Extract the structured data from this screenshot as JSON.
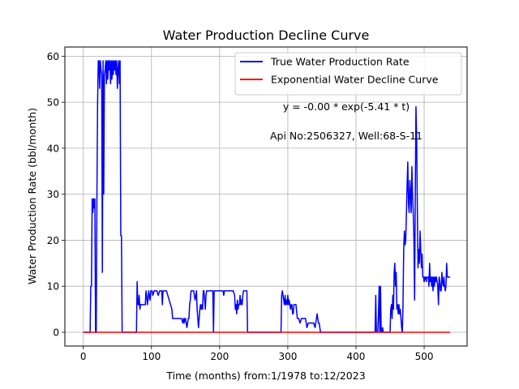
{
  "chart_data": {
    "type": "line",
    "title": "Water Production Decline Curve",
    "xlabel": "Time (months) from:1/1978 to:12/2023",
    "ylabel": "Water Production Rate (bbl/month)",
    "xlim": [
      -27,
      563
    ],
    "ylim": [
      -3,
      62
    ],
    "xticks": [
      0,
      100,
      200,
      300,
      400,
      500
    ],
    "yticks": [
      0,
      10,
      20,
      30,
      40,
      50,
      60
    ],
    "grid": true,
    "legend_position": "top-right",
    "annotations": [
      "y = -0.00 * exp(-5.41 * t)",
      "Api No:2506327, Well:68-S-11"
    ],
    "series": [
      {
        "name": "True Water Production Rate",
        "color": "#0000ff",
        "points": [
          [
            0,
            0
          ],
          [
            10,
            0
          ],
          [
            11,
            10
          ],
          [
            12,
            10
          ],
          [
            13,
            29
          ],
          [
            14,
            26
          ],
          [
            15,
            29
          ],
          [
            16,
            27
          ],
          [
            17,
            29
          ],
          [
            18,
            0
          ],
          [
            19,
            0
          ],
          [
            20,
            29
          ],
          [
            21,
            50
          ],
          [
            22,
            59
          ],
          [
            23,
            59
          ],
          [
            24,
            53
          ],
          [
            25,
            59
          ],
          [
            26,
            57
          ],
          [
            27,
            56
          ],
          [
            28,
            13
          ],
          [
            29,
            59
          ],
          [
            30,
            30
          ],
          [
            31,
            56
          ],
          [
            32,
            57
          ],
          [
            33,
            59
          ],
          [
            34,
            54
          ],
          [
            35,
            59
          ],
          [
            36,
            55
          ],
          [
            37,
            59
          ],
          [
            38,
            57
          ],
          [
            39,
            59
          ],
          [
            40,
            54
          ],
          [
            41,
            59
          ],
          [
            42,
            55
          ],
          [
            43,
            59
          ],
          [
            44,
            56
          ],
          [
            45,
            59
          ],
          [
            46,
            57
          ],
          [
            47,
            59
          ],
          [
            48,
            56
          ],
          [
            49,
            59
          ],
          [
            50,
            53
          ],
          [
            51,
            57
          ],
          [
            52,
            59
          ],
          [
            53,
            54
          ],
          [
            54,
            59
          ],
          [
            55,
            21
          ],
          [
            56,
            21
          ],
          [
            57,
            0
          ],
          [
            58,
            0
          ],
          [
            78,
            0
          ],
          [
            79,
            11
          ],
          [
            80,
            6
          ],
          [
            81,
            6
          ],
          [
            82,
            8
          ],
          [
            83,
            5
          ],
          [
            84,
            6
          ],
          [
            85,
            6
          ],
          [
            86,
            6
          ],
          [
            88,
            6
          ],
          [
            90,
            6
          ],
          [
            91,
            6
          ],
          [
            92,
            9
          ],
          [
            93,
            8
          ],
          [
            94,
            6
          ],
          [
            95,
            7
          ],
          [
            96,
            9
          ],
          [
            98,
            7
          ],
          [
            99,
            9
          ],
          [
            101,
            9
          ],
          [
            102,
            8
          ],
          [
            104,
            9
          ],
          [
            106,
            9
          ],
          [
            108,
            9
          ],
          [
            110,
            8
          ],
          [
            112,
            9
          ],
          [
            114,
            9
          ],
          [
            115,
            9
          ],
          [
            116,
            6
          ],
          [
            117,
            9
          ],
          [
            120,
            9
          ],
          [
            122,
            9
          ],
          [
            124,
            8
          ],
          [
            126,
            7
          ],
          [
            128,
            6
          ],
          [
            130,
            5
          ],
          [
            131,
            3
          ],
          [
            133,
            3
          ],
          [
            135,
            3
          ],
          [
            138,
            3
          ],
          [
            140,
            3
          ],
          [
            142,
            3
          ],
          [
            144,
            3
          ],
          [
            146,
            2
          ],
          [
            147,
            3
          ],
          [
            148,
            2
          ],
          [
            149,
            3
          ],
          [
            150,
            3
          ],
          [
            151,
            2
          ],
          [
            152,
            1
          ],
          [
            153,
            2
          ],
          [
            154,
            3
          ],
          [
            155,
            3
          ],
          [
            156,
            6
          ],
          [
            157,
            7
          ],
          [
            158,
            9
          ],
          [
            160,
            9
          ],
          [
            162,
            9
          ],
          [
            164,
            7
          ],
          [
            165,
            8
          ],
          [
            166,
            9
          ],
          [
            167,
            5
          ],
          [
            168,
            3
          ],
          [
            169,
            1
          ],
          [
            170,
            3
          ],
          [
            171,
            5
          ],
          [
            172,
            6
          ],
          [
            173,
            5
          ],
          [
            174,
            6
          ],
          [
            175,
            5
          ],
          [
            176,
            9
          ],
          [
            177,
            9
          ],
          [
            178,
            7
          ],
          [
            179,
            5
          ],
          [
            180,
            8
          ],
          [
            181,
            9
          ],
          [
            182,
            9
          ],
          [
            184,
            9
          ],
          [
            186,
            9
          ],
          [
            188,
            9
          ],
          [
            190,
            9
          ],
          [
            191,
            0
          ],
          [
            192,
            9
          ],
          [
            194,
            9
          ],
          [
            196,
            9
          ],
          [
            198,
            9
          ],
          [
            200,
            9
          ],
          [
            202,
            9
          ],
          [
            204,
            9
          ],
          [
            205,
            9
          ],
          [
            206,
            8
          ],
          [
            207,
            9
          ],
          [
            208,
            9
          ],
          [
            210,
            9
          ],
          [
            212,
            9
          ],
          [
            214,
            9
          ],
          [
            216,
            9
          ],
          [
            218,
            9
          ],
          [
            220,
            9
          ],
          [
            222,
            8
          ],
          [
            223,
            5
          ],
          [
            224,
            6
          ],
          [
            225,
            4
          ],
          [
            226,
            7
          ],
          [
            227,
            5
          ],
          [
            228,
            6
          ],
          [
            229,
            6
          ],
          [
            230,
            8
          ],
          [
            231,
            6
          ],
          [
            232,
            7
          ],
          [
            233,
            6
          ],
          [
            234,
            8
          ],
          [
            235,
            9
          ],
          [
            236,
            9
          ],
          [
            237,
            9
          ],
          [
            238,
            9
          ],
          [
            239,
            9
          ],
          [
            240,
            9
          ],
          [
            241,
            0
          ],
          [
            242,
            0
          ],
          [
            290,
            0
          ],
          [
            291,
            8
          ],
          [
            292,
            9
          ],
          [
            293,
            8
          ],
          [
            294,
            7
          ],
          [
            295,
            6
          ],
          [
            296,
            8
          ],
          [
            297,
            6
          ],
          [
            298,
            7
          ],
          [
            299,
            6
          ],
          [
            300,
            8
          ],
          [
            301,
            6
          ],
          [
            302,
            7
          ],
          [
            303,
            6
          ],
          [
            304,
            5
          ],
          [
            305,
            6
          ],
          [
            306,
            6
          ],
          [
            307,
            4
          ],
          [
            308,
            4
          ],
          [
            309,
            6
          ],
          [
            310,
            6
          ],
          [
            312,
            6
          ],
          [
            314,
            3
          ],
          [
            316,
            3
          ],
          [
            318,
            2
          ],
          [
            320,
            3
          ],
          [
            322,
            3
          ],
          [
            324,
            3
          ],
          [
            326,
            3
          ],
          [
            328,
            1
          ],
          [
            330,
            2
          ],
          [
            332,
            2
          ],
          [
            334,
            2
          ],
          [
            336,
            2
          ],
          [
            338,
            2
          ],
          [
            340,
            1
          ],
          [
            342,
            3
          ],
          [
            343,
            4
          ],
          [
            344,
            3
          ],
          [
            345,
            2
          ],
          [
            346,
            2
          ],
          [
            347,
            1
          ],
          [
            348,
            0
          ],
          [
            350,
            0
          ],
          [
            428,
            0
          ],
          [
            429,
            8
          ],
          [
            430,
            0
          ],
          [
            431,
            0
          ],
          [
            432,
            0
          ],
          [
            433,
            4
          ],
          [
            434,
            10
          ],
          [
            435,
            0
          ],
          [
            436,
            10
          ],
          [
            437,
            0
          ],
          [
            438,
            0
          ],
          [
            439,
            1
          ],
          [
            440,
            0
          ],
          [
            450,
            0
          ],
          [
            451,
            5
          ],
          [
            452,
            6
          ],
          [
            453,
            3
          ],
          [
            454,
            8
          ],
          [
            455,
            5
          ],
          [
            456,
            13
          ],
          [
            457,
            15
          ],
          [
            458,
            10
          ],
          [
            459,
            13
          ],
          [
            460,
            5
          ],
          [
            461,
            6
          ],
          [
            462,
            4
          ],
          [
            463,
            6
          ],
          [
            464,
            4
          ],
          [
            465,
            5
          ],
          [
            466,
            3
          ],
          [
            467,
            1
          ],
          [
            468,
            0
          ],
          [
            469,
            6
          ],
          [
            470,
            18
          ],
          [
            471,
            22
          ],
          [
            472,
            19
          ],
          [
            473,
            20
          ],
          [
            474,
            26
          ],
          [
            475,
            32
          ],
          [
            476,
            37
          ],
          [
            477,
            28
          ],
          [
            478,
            26
          ],
          [
            479,
            33
          ],
          [
            480,
            30
          ],
          [
            481,
            26
          ],
          [
            482,
            36
          ],
          [
            483,
            30
          ],
          [
            484,
            26
          ],
          [
            485,
            20
          ],
          [
            486,
            7
          ],
          [
            487,
            30
          ],
          [
            488,
            49
          ],
          [
            489,
            42
          ],
          [
            490,
            27
          ],
          [
            491,
            14
          ],
          [
            492,
            18
          ],
          [
            493,
            15
          ],
          [
            494,
            22
          ],
          [
            495,
            18
          ],
          [
            496,
            14
          ],
          [
            497,
            17
          ],
          [
            498,
            12
          ],
          [
            499,
            12
          ],
          [
            500,
            11
          ],
          [
            501,
            12
          ],
          [
            502,
            12
          ],
          [
            503,
            11
          ],
          [
            504,
            12
          ],
          [
            505,
            12
          ],
          [
            506,
            12
          ],
          [
            507,
            10
          ],
          [
            508,
            15
          ],
          [
            509,
            11
          ],
          [
            510,
            12
          ],
          [
            511,
            10
          ],
          [
            512,
            12
          ],
          [
            513,
            9
          ],
          [
            514,
            12
          ],
          [
            515,
            10
          ],
          [
            516,
            12
          ],
          [
            517,
            11
          ],
          [
            518,
            12
          ],
          [
            519,
            11
          ],
          [
            520,
            10
          ],
          [
            521,
            6
          ],
          [
            522,
            12
          ],
          [
            523,
            11
          ],
          [
            524,
            9
          ],
          [
            525,
            9
          ],
          [
            526,
            13
          ],
          [
            527,
            11
          ],
          [
            528,
            10
          ],
          [
            529,
            12
          ],
          [
            530,
            10
          ],
          [
            531,
            9
          ],
          [
            532,
            10
          ],
          [
            533,
            15
          ],
          [
            534,
            12
          ],
          [
            535,
            12
          ],
          [
            536,
            12
          ],
          [
            537,
            12
          ],
          [
            538,
            12
          ]
        ]
      },
      {
        "name": "Exponential Water Decline Curve",
        "color": "#ff0000",
        "points": [
          [
            0,
            0
          ],
          [
            538,
            0
          ]
        ]
      }
    ]
  }
}
